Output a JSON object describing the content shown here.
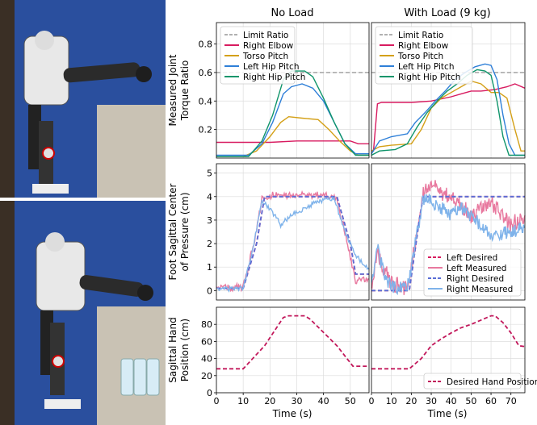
{
  "columns": [
    {
      "title": "No Load",
      "xlim": [
        0,
        57
      ],
      "xticks": [
        0,
        10,
        20,
        30,
        40,
        50
      ]
    },
    {
      "title": "With Load (9 kg)",
      "xlim": [
        0,
        77
      ],
      "xticks": [
        0,
        10,
        20,
        30,
        40,
        50,
        60,
        70
      ]
    },
    {
      "xlabel": "Time (s)"
    }
  ],
  "rows": [
    {
      "ylabel": [
        "Measured Joint",
        "Torque Ratio"
      ],
      "ylim": [
        0,
        0.95
      ],
      "yticks": [
        0.2,
        0.4,
        0.6,
        0.8
      ]
    },
    {
      "ylabel": [
        "Foot Sagittal Center",
        "of Pressure (cm)"
      ],
      "ylim": [
        -0.4,
        5.4
      ],
      "yticks": [
        0,
        1,
        2,
        3,
        4,
        5
      ]
    },
    {
      "ylabel": [
        "Sagittal Hand",
        "Position (cm)"
      ],
      "ylim": [
        0,
        100
      ],
      "yticks": [
        0,
        20,
        40,
        60,
        80
      ]
    }
  ],
  "colors": {
    "limit": "#b0b0b0",
    "elbow": "#d81b60",
    "torso": "#d4a017",
    "lhip": "#2e7fd8",
    "rhip": "#10956b",
    "cop_desired_l": "#d81b60",
    "cop_measured_l": "#e8799f",
    "cop_desired_r": "#5a6ed6",
    "cop_measured_r": "#7fb3ea",
    "hand": "#c2185b",
    "grid": "#dddddd"
  },
  "photos": {
    "description": "photos of humanoid robot reaching forward, without load (top) and holding water bottles (bottom)"
  },
  "chart_data": [
    {
      "type": "line",
      "panel": "torque-noload",
      "legend": "top-left",
      "series": [
        {
          "name": "Limit Ratio",
          "color_key": "limit",
          "dash": true,
          "points": [
            [
              0,
              0.6
            ],
            [
              57,
              0.6
            ]
          ]
        },
        {
          "name": "Right Elbow",
          "color_key": "elbow",
          "points": [
            [
              0,
              0.11
            ],
            [
              10,
              0.11
            ],
            [
              20,
              0.11
            ],
            [
              30,
              0.12
            ],
            [
              40,
              0.12
            ],
            [
              50,
              0.12
            ],
            [
              53,
              0.1
            ],
            [
              57,
              0.1
            ]
          ]
        },
        {
          "name": "Torso Pitch",
          "color_key": "torso",
          "points": [
            [
              0,
              0.01
            ],
            [
              10,
              0.01
            ],
            [
              15,
              0.05
            ],
            [
              20,
              0.15
            ],
            [
              24,
              0.25
            ],
            [
              27,
              0.29
            ],
            [
              32,
              0.28
            ],
            [
              38,
              0.27
            ],
            [
              42,
              0.2
            ],
            [
              46,
              0.12
            ],
            [
              50,
              0.05
            ],
            [
              53,
              0.02
            ],
            [
              57,
              0.02
            ]
          ]
        },
        {
          "name": "Left Hip Pitch",
          "color_key": "lhip",
          "points": [
            [
              0,
              0.02
            ],
            [
              12,
              0.02
            ],
            [
              17,
              0.1
            ],
            [
              21,
              0.25
            ],
            [
              25,
              0.45
            ],
            [
              28,
              0.5
            ],
            [
              32,
              0.52
            ],
            [
              36,
              0.49
            ],
            [
              40,
              0.4
            ],
            [
              44,
              0.25
            ],
            [
              48,
              0.1
            ],
            [
              52,
              0.03
            ],
            [
              57,
              0.03
            ]
          ]
        },
        {
          "name": "Right Hip Pitch",
          "color_key": "rhip",
          "points": [
            [
              0,
              0.01
            ],
            [
              12,
              0.01
            ],
            [
              17,
              0.12
            ],
            [
              21,
              0.3
            ],
            [
              25,
              0.55
            ],
            [
              28,
              0.61
            ],
            [
              33,
              0.61
            ],
            [
              36,
              0.57
            ],
            [
              40,
              0.42
            ],
            [
              44,
              0.25
            ],
            [
              48,
              0.1
            ],
            [
              52,
              0.02
            ],
            [
              57,
              0.02
            ]
          ]
        }
      ]
    },
    {
      "type": "line",
      "panel": "torque-load",
      "legend": "top-left",
      "series": [
        {
          "name": "Limit Ratio",
          "color_key": "limit",
          "dash": true,
          "points": [
            [
              0,
              0.6
            ],
            [
              77,
              0.6
            ]
          ]
        },
        {
          "name": "Right Elbow",
          "color_key": "elbow",
          "points": [
            [
              0,
              0.05
            ],
            [
              1,
              0.05
            ],
            [
              3,
              0.38
            ],
            [
              5,
              0.39
            ],
            [
              20,
              0.39
            ],
            [
              30,
              0.4
            ],
            [
              40,
              0.43
            ],
            [
              45,
              0.45
            ],
            [
              50,
              0.47
            ],
            [
              55,
              0.47
            ],
            [
              62,
              0.48
            ],
            [
              68,
              0.5
            ],
            [
              72,
              0.52
            ],
            [
              77,
              0.49
            ]
          ]
        },
        {
          "name": "Torso Pitch",
          "color_key": "torso",
          "points": [
            [
              0,
              0.05
            ],
            [
              4,
              0.08
            ],
            [
              10,
              0.09
            ],
            [
              20,
              0.1
            ],
            [
              25,
              0.2
            ],
            [
              30,
              0.35
            ],
            [
              35,
              0.42
            ],
            [
              40,
              0.46
            ],
            [
              45,
              0.5
            ],
            [
              50,
              0.54
            ],
            [
              55,
              0.52
            ],
            [
              60,
              0.46
            ],
            [
              64,
              0.46
            ],
            [
              68,
              0.42
            ],
            [
              72,
              0.2
            ],
            [
              75,
              0.05
            ],
            [
              77,
              0.05
            ]
          ]
        },
        {
          "name": "Left Hip Pitch",
          "color_key": "lhip",
          "points": [
            [
              0,
              0.03
            ],
            [
              4,
              0.12
            ],
            [
              10,
              0.15
            ],
            [
              18,
              0.17
            ],
            [
              22,
              0.25
            ],
            [
              27,
              0.32
            ],
            [
              32,
              0.4
            ],
            [
              37,
              0.47
            ],
            [
              42,
              0.55
            ],
            [
              47,
              0.6
            ],
            [
              52,
              0.64
            ],
            [
              57,
              0.66
            ],
            [
              60,
              0.65
            ],
            [
              63,
              0.55
            ],
            [
              66,
              0.3
            ],
            [
              69,
              0.1
            ],
            [
              72,
              0.02
            ],
            [
              77,
              0.02
            ]
          ]
        },
        {
          "name": "Right Hip Pitch",
          "color_key": "rhip",
          "points": [
            [
              0,
              0.02
            ],
            [
              4,
              0.05
            ],
            [
              12,
              0.06
            ],
            [
              18,
              0.1
            ],
            [
              23,
              0.22
            ],
            [
              28,
              0.32
            ],
            [
              33,
              0.4
            ],
            [
              38,
              0.47
            ],
            [
              43,
              0.52
            ],
            [
              48,
              0.58
            ],
            [
              53,
              0.62
            ],
            [
              57,
              0.61
            ],
            [
              60,
              0.58
            ],
            [
              63,
              0.4
            ],
            [
              66,
              0.15
            ],
            [
              69,
              0.02
            ],
            [
              77,
              0.02
            ]
          ]
        }
      ]
    },
    {
      "type": "line",
      "panel": "cop-noload",
      "series": [
        {
          "name": "Left Desired",
          "color_key": "cop_desired_l",
          "dash": true,
          "points": [
            [
              0,
              0.1
            ],
            [
              10,
              0.1
            ],
            [
              15,
              2
            ],
            [
              18,
              4
            ],
            [
              45,
              4
            ],
            [
              50,
              2
            ],
            [
              52,
              0.7
            ],
            [
              57,
              0.7
            ]
          ]
        },
        {
          "name": "Left Measured",
          "color_key": "cop_measured_l",
          "noise": 0.15,
          "points": [
            [
              0,
              0.1
            ],
            [
              10,
              0.15
            ],
            [
              14,
              2
            ],
            [
              17,
              3.9
            ],
            [
              22,
              4.1
            ],
            [
              30,
              4.05
            ],
            [
              40,
              4.1
            ],
            [
              45,
              3.9
            ],
            [
              49,
              2
            ],
            [
              52,
              0.4
            ],
            [
              57,
              0.5
            ]
          ]
        },
        {
          "name": "Right Desired",
          "color_key": "cop_desired_r",
          "dash": true,
          "points": [
            [
              0,
              0.1
            ],
            [
              10,
              0.1
            ],
            [
              15,
              2
            ],
            [
              18,
              4
            ],
            [
              45,
              4
            ],
            [
              50,
              2
            ],
            [
              52,
              0.7
            ],
            [
              57,
              0.7
            ]
          ]
        },
        {
          "name": "Right Measured",
          "color_key": "cop_measured_r",
          "noise": 0.1,
          "points": [
            [
              0,
              0.05
            ],
            [
              10,
              0.1
            ],
            [
              14,
              2
            ],
            [
              17,
              3.8
            ],
            [
              20,
              3.5
            ],
            [
              24,
              2.8
            ],
            [
              28,
              3.2
            ],
            [
              33,
              3.5
            ],
            [
              38,
              3.8
            ],
            [
              44,
              3.9
            ],
            [
              48,
              2.5
            ],
            [
              52,
              1.5
            ],
            [
              57,
              0.9
            ]
          ]
        }
      ]
    },
    {
      "type": "line",
      "panel": "cop-load",
      "legend": "bottom-right",
      "series": [
        {
          "name": "Left Desired",
          "color_key": "cop_desired_l",
          "dash": true,
          "points": [
            [
              0,
              0
            ],
            [
              19,
              0
            ],
            [
              24,
              3
            ],
            [
              26,
              4
            ],
            [
              77,
              4
            ]
          ]
        },
        {
          "name": "Left Measured",
          "color_key": "cop_measured_l",
          "noise": 0.35,
          "points": [
            [
              0,
              0
            ],
            [
              3,
              1.5
            ],
            [
              7,
              0.8
            ],
            [
              10,
              0.3
            ],
            [
              18,
              0.1
            ],
            [
              22,
              2
            ],
            [
              26,
              4.2
            ],
            [
              30,
              4.5
            ],
            [
              35,
              4.2
            ],
            [
              40,
              4
            ],
            [
              45,
              3.6
            ],
            [
              50,
              3.2
            ],
            [
              55,
              3.5
            ],
            [
              60,
              3.8
            ],
            [
              65,
              3.2
            ],
            [
              70,
              2.8
            ],
            [
              77,
              3.2
            ]
          ]
        },
        {
          "name": "Right Desired",
          "color_key": "cop_desired_r",
          "dash": true,
          "points": [
            [
              0,
              0
            ],
            [
              19,
              0
            ],
            [
              24,
              3
            ],
            [
              26,
              4
            ],
            [
              77,
              4
            ]
          ]
        },
        {
          "name": "Right Measured",
          "color_key": "cop_measured_r",
          "noise": 0.3,
          "points": [
            [
              0,
              0.2
            ],
            [
              3,
              1.8
            ],
            [
              7,
              0.5
            ],
            [
              10,
              0.2
            ],
            [
              18,
              0.1
            ],
            [
              22,
              2
            ],
            [
              26,
              3.9
            ],
            [
              30,
              3.8
            ],
            [
              35,
              3.5
            ],
            [
              40,
              3.2
            ],
            [
              45,
              3.5
            ],
            [
              50,
              3.2
            ],
            [
              55,
              2.8
            ],
            [
              60,
              2.2
            ],
            [
              65,
              2.4
            ],
            [
              70,
              2.5
            ],
            [
              77,
              2.7
            ]
          ]
        }
      ]
    },
    {
      "type": "line",
      "panel": "hand-noload",
      "series": [
        {
          "name": "Desired Hand Position",
          "color_key": "hand",
          "dash": true,
          "points": [
            [
              0,
              28
            ],
            [
              10,
              28
            ],
            [
              18,
              55
            ],
            [
              25,
              88
            ],
            [
              27,
              90
            ],
            [
              33,
              90
            ],
            [
              35,
              86
            ],
            [
              45,
              55
            ],
            [
              51,
              31
            ],
            [
              57,
              31
            ]
          ]
        }
      ]
    },
    {
      "type": "line",
      "panel": "hand-load",
      "legend": "bottom-right",
      "series": [
        {
          "name": "Desired Hand Position",
          "color_key": "hand",
          "dash": true,
          "points": [
            [
              0,
              28
            ],
            [
              19,
              28
            ],
            [
              25,
              40
            ],
            [
              30,
              55
            ],
            [
              35,
              63
            ],
            [
              40,
              70
            ],
            [
              45,
              76
            ],
            [
              50,
              80
            ],
            [
              55,
              85
            ],
            [
              60,
              90
            ],
            [
              62,
              90
            ],
            [
              66,
              82
            ],
            [
              70,
              70
            ],
            [
              74,
              55
            ],
            [
              77,
              54
            ]
          ]
        }
      ]
    }
  ]
}
